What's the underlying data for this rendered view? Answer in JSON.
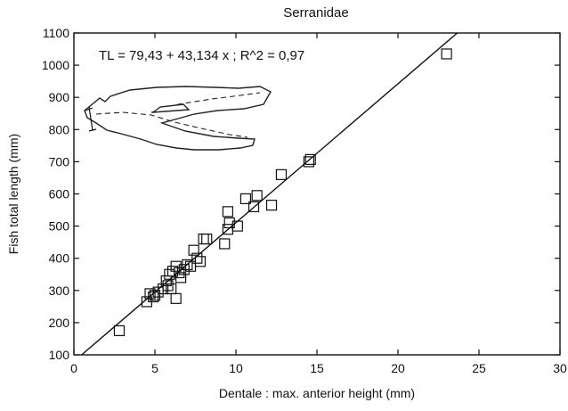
{
  "chart_data": {
    "type": "scatter",
    "title": "Serranidae",
    "xlabel": "Dentale : max. anterior height (mm)",
    "ylabel": "Fish total length (mm)",
    "equation": "TL = 79,43 + 43,134 x ; R^2 = 0,97",
    "xlim": [
      0,
      30
    ],
    "ylim": [
      100,
      1100
    ],
    "xticks": [
      0,
      5,
      10,
      15,
      20,
      25,
      30
    ],
    "yticks": [
      100,
      200,
      300,
      400,
      500,
      600,
      700,
      800,
      900,
      1000,
      1100
    ],
    "grid": false,
    "marker": "open-square",
    "regression": {
      "intercept": 79.43,
      "slope": 43.134,
      "r2": 0.97
    },
    "points": [
      {
        "x": 2.8,
        "y": 175
      },
      {
        "x": 4.5,
        "y": 265
      },
      {
        "x": 4.7,
        "y": 290
      },
      {
        "x": 4.9,
        "y": 280
      },
      {
        "x": 5.0,
        "y": 285
      },
      {
        "x": 5.2,
        "y": 295
      },
      {
        "x": 5.5,
        "y": 305
      },
      {
        "x": 5.7,
        "y": 330
      },
      {
        "x": 5.8,
        "y": 315
      },
      {
        "x": 5.9,
        "y": 350
      },
      {
        "x": 6.0,
        "y": 305
      },
      {
        "x": 6.1,
        "y": 360
      },
      {
        "x": 6.3,
        "y": 275
      },
      {
        "x": 6.3,
        "y": 375
      },
      {
        "x": 6.5,
        "y": 355
      },
      {
        "x": 6.6,
        "y": 340
      },
      {
        "x": 6.8,
        "y": 365
      },
      {
        "x": 7.0,
        "y": 380
      },
      {
        "x": 7.2,
        "y": 375
      },
      {
        "x": 7.4,
        "y": 425
      },
      {
        "x": 7.6,
        "y": 400
      },
      {
        "x": 7.8,
        "y": 390
      },
      {
        "x": 8.0,
        "y": 460
      },
      {
        "x": 8.2,
        "y": 460
      },
      {
        "x": 9.3,
        "y": 445
      },
      {
        "x": 9.5,
        "y": 490
      },
      {
        "x": 9.5,
        "y": 545
      },
      {
        "x": 9.6,
        "y": 510
      },
      {
        "x": 10.1,
        "y": 500
      },
      {
        "x": 10.6,
        "y": 585
      },
      {
        "x": 11.1,
        "y": 560
      },
      {
        "x": 11.3,
        "y": 595
      },
      {
        "x": 12.2,
        "y": 565
      },
      {
        "x": 12.8,
        "y": 660
      },
      {
        "x": 14.5,
        "y": 700
      },
      {
        "x": 14.6,
        "y": 707
      },
      {
        "x": 23.0,
        "y": 1035
      }
    ]
  }
}
